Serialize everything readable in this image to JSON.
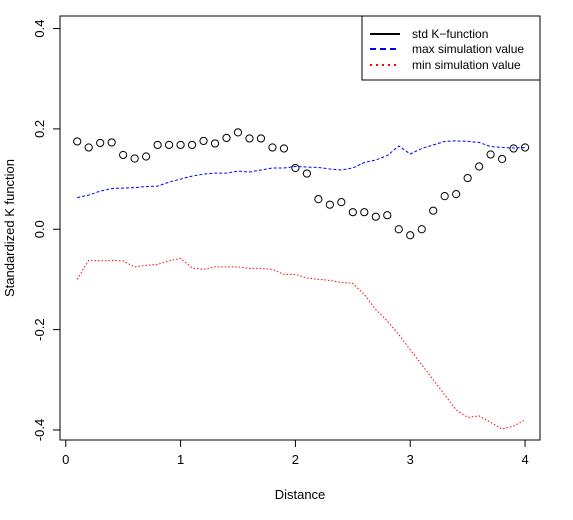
{
  "chart_data": {
    "type": "scatter",
    "xlabel": "Distance",
    "ylabel": "Standardized K function",
    "xlim": [
      -0.05,
      4.13
    ],
    "ylim": [
      -0.42,
      0.425
    ],
    "xticks": [
      0,
      1,
      2,
      3,
      4
    ],
    "yticks": [
      -0.4,
      -0.2,
      0.0,
      0.2,
      0.4
    ],
    "xtick_labels": [
      "0",
      "1",
      "2",
      "3",
      "4"
    ],
    "ytick_labels": [
      "-0.4",
      "-0.2",
      "0.0",
      "0.2",
      "0.4"
    ],
    "legend_position": "top-right",
    "series": [
      {
        "name": "std K−function",
        "style": "points",
        "color": "#000000",
        "x": [
          0.1,
          0.2,
          0.3,
          0.4,
          0.5,
          0.6,
          0.7,
          0.8,
          0.9,
          1.0,
          1.1,
          1.2,
          1.3,
          1.4,
          1.5,
          1.6,
          1.7,
          1.8,
          1.9,
          2.0,
          2.1,
          2.2,
          2.3,
          2.4,
          2.5,
          2.6,
          2.7,
          2.8,
          2.9,
          3.0,
          3.1,
          3.2,
          3.3,
          3.4,
          3.5,
          3.6,
          3.7,
          3.8,
          3.9,
          4.0
        ],
        "y": [
          0.175,
          0.163,
          0.172,
          0.173,
          0.148,
          0.141,
          0.145,
          0.168,
          0.168,
          0.168,
          0.168,
          0.176,
          0.171,
          0.182,
          0.193,
          0.181,
          0.181,
          0.163,
          0.161,
          0.122,
          0.111,
          0.06,
          0.049,
          0.054,
          0.034,
          0.034,
          0.025,
          0.028,
          0.0,
          -0.012,
          0.0,
          0.037,
          0.066,
          0.07,
          0.102,
          0.125,
          0.149,
          0.14,
          0.161,
          0.163
        ]
      },
      {
        "name": "max simulation value",
        "style": "dashed",
        "color": "#0000ff",
        "x": [
          0.1,
          0.2,
          0.3,
          0.4,
          0.5,
          0.6,
          0.7,
          0.8,
          0.9,
          1.0,
          1.1,
          1.2,
          1.3,
          1.4,
          1.5,
          1.6,
          1.7,
          1.8,
          1.9,
          2.0,
          2.1,
          2.2,
          2.3,
          2.4,
          2.5,
          2.6,
          2.7,
          2.8,
          2.9,
          3.0,
          3.1,
          3.2,
          3.3,
          3.4,
          3.5,
          3.6,
          3.7,
          3.8,
          3.9,
          4.0
        ],
        "y": [
          0.063,
          0.068,
          0.076,
          0.081,
          0.082,
          0.083,
          0.085,
          0.086,
          0.094,
          0.1,
          0.106,
          0.11,
          0.112,
          0.112,
          0.116,
          0.114,
          0.118,
          0.122,
          0.122,
          0.125,
          0.124,
          0.123,
          0.12,
          0.118,
          0.122,
          0.133,
          0.138,
          0.147,
          0.166,
          0.15,
          0.161,
          0.168,
          0.175,
          0.176,
          0.175,
          0.173,
          0.165,
          0.163,
          0.162,
          0.163
        ]
      },
      {
        "name": "min simulation value",
        "style": "dotted",
        "color": "#ff0000",
        "x": [
          0.1,
          0.2,
          0.3,
          0.4,
          0.5,
          0.6,
          0.7,
          0.8,
          0.9,
          1.0,
          1.1,
          1.2,
          1.3,
          1.4,
          1.5,
          1.6,
          1.7,
          1.8,
          1.9,
          2.0,
          2.1,
          2.2,
          2.3,
          2.4,
          2.5,
          2.6,
          2.7,
          2.8,
          2.9,
          3.0,
          3.1,
          3.2,
          3.3,
          3.4,
          3.5,
          3.6,
          3.7,
          3.8,
          3.9,
          4.0
        ],
        "y": [
          -0.1,
          -0.062,
          -0.063,
          -0.062,
          -0.063,
          -0.075,
          -0.072,
          -0.07,
          -0.063,
          -0.058,
          -0.077,
          -0.08,
          -0.075,
          -0.075,
          -0.075,
          -0.078,
          -0.078,
          -0.08,
          -0.09,
          -0.09,
          -0.097,
          -0.1,
          -0.102,
          -0.106,
          -0.108,
          -0.13,
          -0.16,
          -0.183,
          -0.21,
          -0.24,
          -0.27,
          -0.3,
          -0.33,
          -0.36,
          -0.375,
          -0.372,
          -0.385,
          -0.398,
          -0.392,
          -0.38
        ]
      }
    ]
  }
}
